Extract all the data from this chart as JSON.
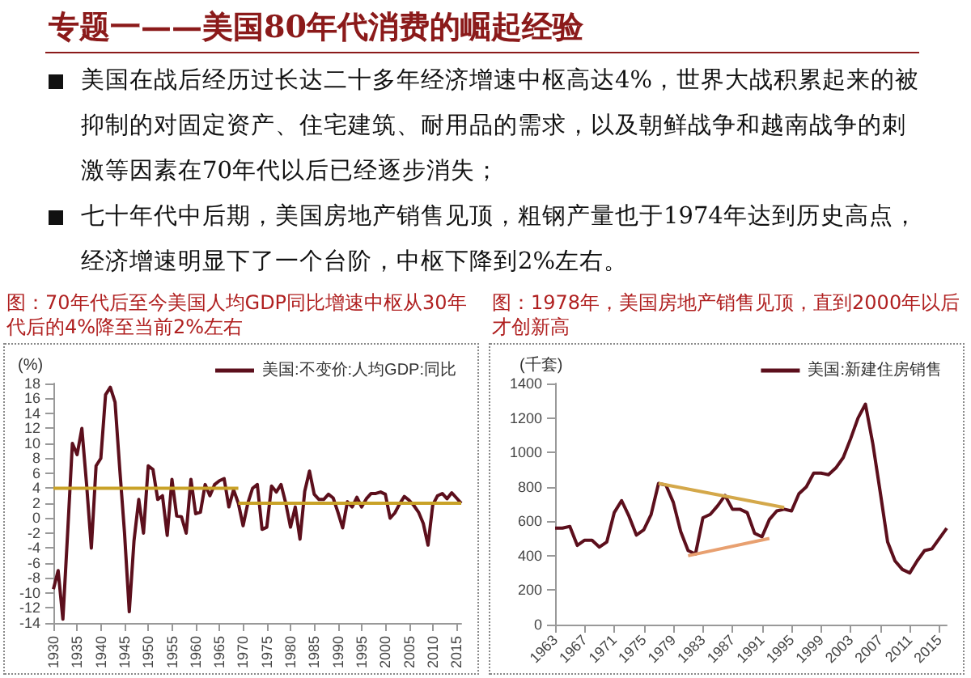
{
  "chart_data": [
    {
      "type": "other",
      "title": "专题一——美国80年代消费的崛起经验",
      "annotations": [
        "美国在战后经历过长达二十多年经济增速中枢高达4%，世界大战积累起来的被抑制的对固定资产、住宅建筑、耐用品的需求，以及朝鲜战争和越南战争的刺激等因素在70年代以后已经逐步消失；",
        "七十年代中后期，美国房地产销售见顶，粗钢产量也于1974年达到历史高点，经济增速明显下了一个台阶，中枢下降到2%左右。"
      ]
    },
    {
      "type": "line",
      "title": "图：70年代后至今美国人均GDP同比增速中枢从30年代后的4%降至当前2%左右",
      "ylabel": "(%)",
      "xlim": [
        1930,
        2016
      ],
      "xticks": [
        1930,
        1935,
        1940,
        1945,
        1950,
        1955,
        1960,
        1965,
        1970,
        1975,
        1980,
        1985,
        1990,
        1995,
        2000,
        2005,
        2010,
        2015
      ],
      "ylim": [
        -14,
        18
      ],
      "yticks": [
        -14,
        -12,
        -10,
        -8,
        -6,
        -4,
        -2,
        0,
        2,
        4,
        6,
        8,
        10,
        12,
        14,
        16,
        18
      ],
      "legend": "top right",
      "marker": "none",
      "series": [
        {
          "name": "美国:不变价:人均GDP:同比",
          "color": "#5c0f1c",
          "x": [
            1930,
            1931,
            1932,
            1933,
            1934,
            1935,
            1936,
            1937,
            1938,
            1939,
            1940,
            1941,
            1942,
            1943,
            1944,
            1945,
            1946,
            1947,
            1948,
            1949,
            1950,
            1951,
            1952,
            1953,
            1954,
            1955,
            1956,
            1957,
            1958,
            1959,
            1960,
            1961,
            1962,
            1963,
            1964,
            1965,
            1966,
            1967,
            1968,
            1969,
            1970,
            1971,
            1972,
            1973,
            1974,
            1975,
            1976,
            1977,
            1978,
            1979,
            1980,
            1981,
            1982,
            1983,
            1984,
            1985,
            1986,
            1987,
            1988,
            1989,
            1990,
            1991,
            1992,
            1993,
            1994,
            1995,
            1996,
            1997,
            1998,
            1999,
            2000,
            2001,
            2002,
            2003,
            2004,
            2005,
            2006,
            2007,
            2008,
            2009,
            2010,
            2011,
            2012,
            2013,
            2014,
            2015,
            2016
          ],
          "values": [
            -9.5,
            -7,
            -13.5,
            -2,
            10,
            8.5,
            12,
            4.5,
            -4,
            7,
            8,
            16.5,
            17.5,
            15.5,
            6.5,
            -2,
            -12.5,
            -3,
            2.5,
            -2,
            7,
            6.5,
            2.5,
            3,
            -2.3,
            5.2,
            0.3,
            0.2,
            -2,
            5.2,
            0.6,
            0.8,
            4.5,
            3,
            4.5,
            5,
            5.3,
            1.5,
            3.8,
            2,
            -1,
            2,
            4,
            4.5,
            -1.5,
            -1.2,
            4.3,
            3.5,
            4.5,
            2,
            -1.2,
            1.5,
            -2.8,
            3.6,
            6.3,
            3.2,
            2.5,
            2.5,
            3.2,
            2.7,
            0.8,
            -1.3,
            2.2,
            1.5,
            2.8,
            1.5,
            2.6,
            3.3,
            3.3,
            3.5,
            3.2,
            0,
            0.7,
            1.9,
            2.9,
            2.4,
            1.7,
            0.8,
            -0.7,
            -3.6,
            1.8,
            3,
            3.3,
            2.6,
            3.4,
            2.7,
            2
          ]
        },
        {
          "color": "#c9a227",
          "x": [
            1930,
            1969
          ],
          "values": [
            4,
            4
          ]
        },
        {
          "color": "#c9a227",
          "x": [
            1969,
            2016
          ],
          "values": [
            2,
            2
          ]
        }
      ]
    },
    {
      "type": "line",
      "title": "图：1978年，美国房地产销售见顶，直到2000年以后才创新高",
      "ylabel": "(千套)",
      "xlim": [
        1963,
        2016
      ],
      "xticks": [
        1963,
        1967,
        1971,
        1975,
        1979,
        1983,
        1987,
        1991,
        1995,
        1999,
        2003,
        2007,
        2011,
        2015
      ],
      "ylim": [
        0,
        1400
      ],
      "yticks": [
        0,
        200,
        400,
        600,
        800,
        1000,
        1200,
        1400
      ],
      "legend": "top right",
      "marker": "none",
      "series": [
        {
          "name": "美国:新建住房销售",
          "color": "#5c0f1c",
          "x": [
            1963,
            1964,
            1965,
            1966,
            1967,
            1968,
            1969,
            1970,
            1971,
            1972,
            1973,
            1974,
            1975,
            1976,
            1977,
            1978,
            1979,
            1980,
            1981,
            1982,
            1983,
            1984,
            1985,
            1986,
            1987,
            1988,
            1989,
            1990,
            1991,
            1992,
            1993,
            1994,
            1995,
            1996,
            1997,
            1998,
            1999,
            2000,
            2001,
            2002,
            2003,
            2004,
            2005,
            2006,
            2007,
            2008,
            2009,
            2010,
            2011,
            2012,
            2013,
            2014,
            2015,
            2016
          ],
          "values": [
            560,
            560,
            570,
            460,
            490,
            490,
            450,
            480,
            650,
            720,
            630,
            520,
            550,
            640,
            820,
            810,
            710,
            540,
            430,
            410,
            620,
            640,
            690,
            750,
            670,
            670,
            650,
            530,
            510,
            610,
            660,
            670,
            660,
            760,
            800,
            880,
            880,
            870,
            910,
            970,
            1080,
            1200,
            1280,
            1050,
            770,
            480,
            370,
            320,
            300,
            370,
            430,
            440,
            500,
            560
          ]
        },
        {
          "color": "#d4a84a",
          "x": [
            1977,
            1994
          ],
          "values": [
            820,
            680
          ]
        },
        {
          "color": "#e8a070",
          "x": [
            1981,
            1992
          ],
          "values": [
            400,
            500
          ]
        }
      ]
    }
  ]
}
